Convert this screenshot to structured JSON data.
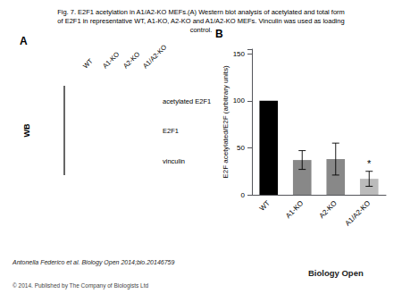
{
  "chart_data": {
    "type": "bar",
    "title": "Fig. 7. E2F1 acetylation in A1/A2-KO MEFs.(A) Western blot analysis of acetylated and total form\nof E2F1 in representative WT, A1-KO, A2-KO and A1/A2-KO MEFs. Vinculin was used as loading\ncontrol.",
    "categories": [
      "WT",
      "A1-KO",
      "A2-KO",
      "A1/A2-KO"
    ],
    "values": [
      100,
      37,
      38,
      17
    ],
    "errors": [
      0,
      10,
      17,
      8
    ],
    "colors": [
      "#000000",
      "#888888",
      "#888888",
      "#bbbbbb"
    ],
    "ylabel": "E2F acetylated/E2F (arbitrary units)",
    "ylim": [
      0,
      155
    ],
    "yticks": [
      0,
      50,
      100,
      150
    ],
    "grid": false,
    "annotations": [
      {
        "text": "A"
      },
      {
        "text": "B"
      },
      {
        "text": "WB"
      },
      {
        "text": "acetylated E2F1"
      },
      {
        "text": "E2F1"
      },
      {
        "text": "vinculin"
      },
      {
        "text": "WT"
      },
      {
        "text": "A1-KO"
      },
      {
        "text": "A2-KO"
      },
      {
        "text": "A1/A2-KO"
      },
      {
        "text": "Antonella Federico et al. Biology Open 2014;bio.20146759"
      },
      {
        "text": "© 2014. Published by The Company of Biologists Ltd"
      },
      {
        "text": "Biology Open"
      },
      {
        "text": "*",
        "category": "A1/A2-KO"
      }
    ]
  }
}
